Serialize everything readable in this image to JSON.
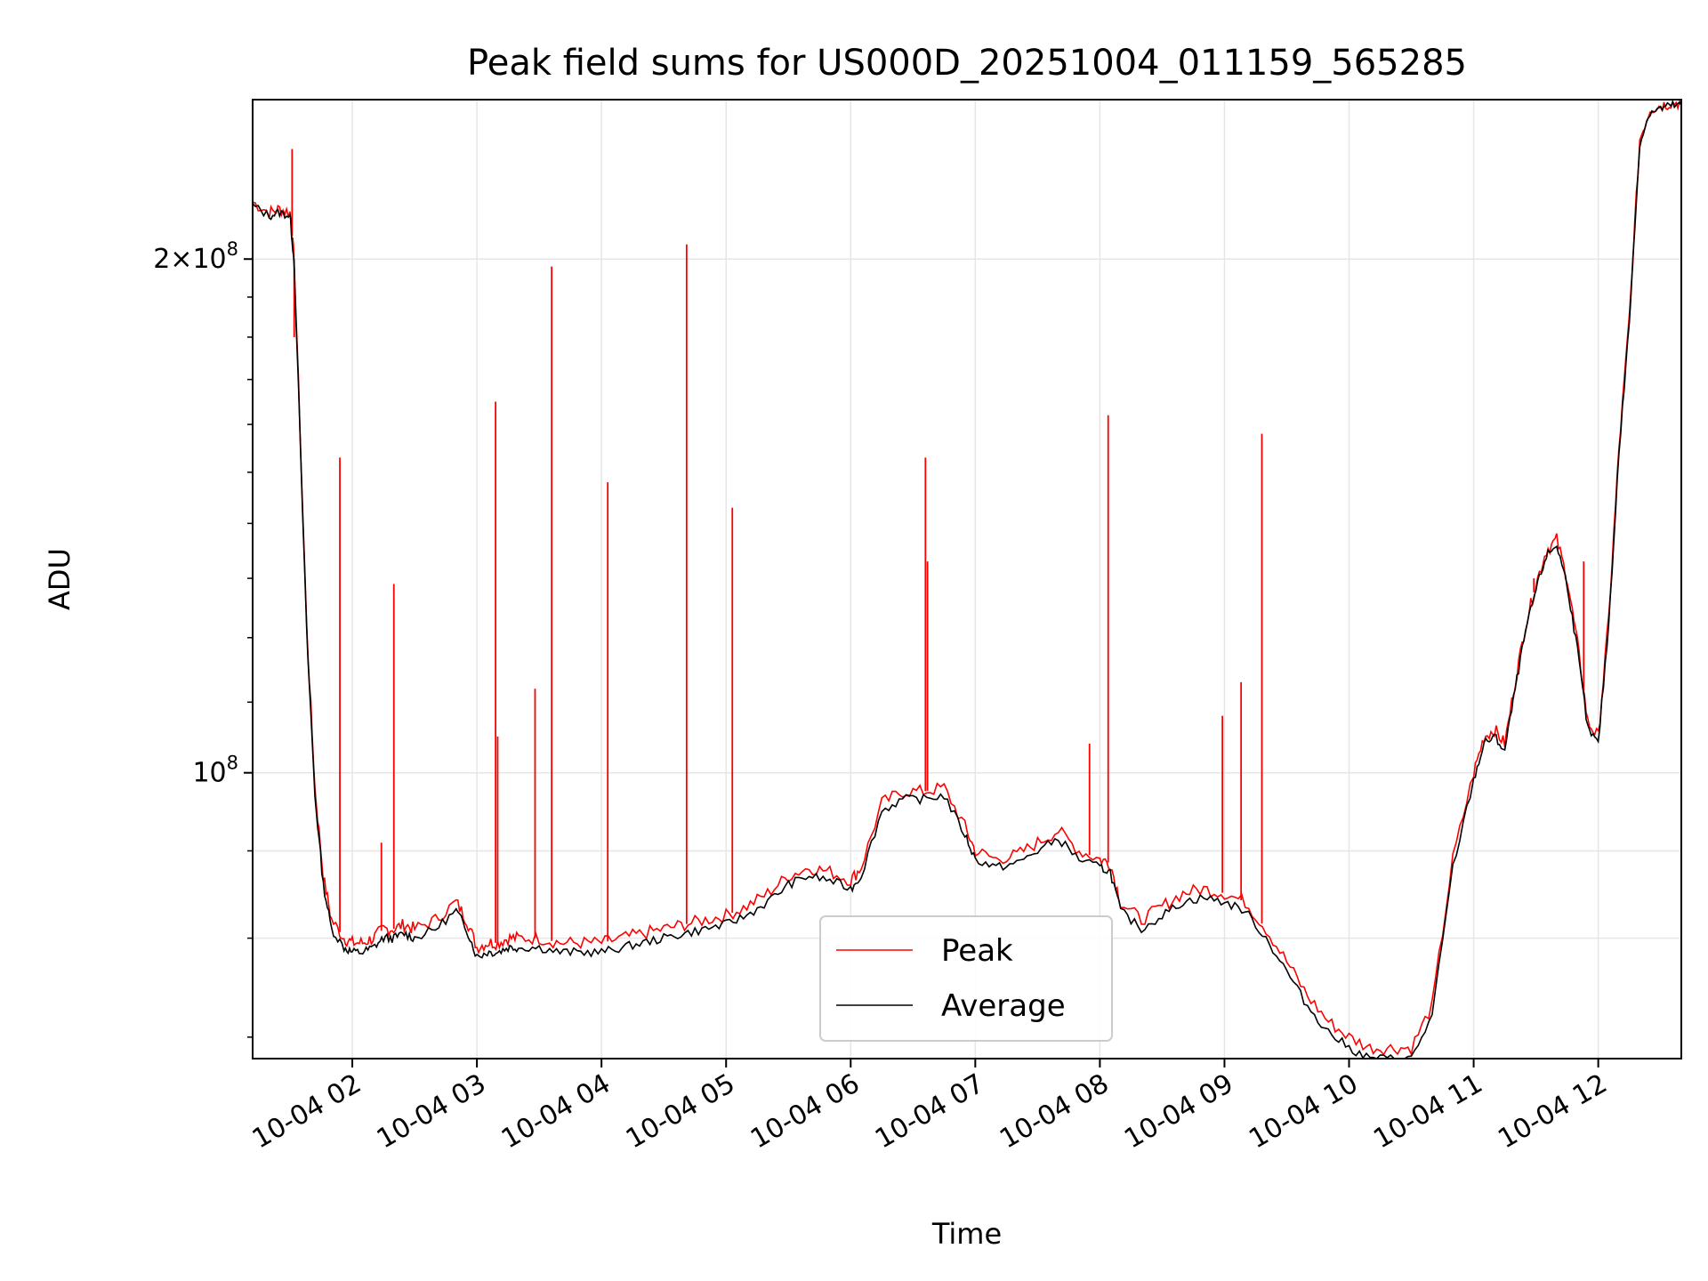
{
  "chart_data": {
    "type": "line",
    "title": "Peak field sums for US000D_20251004_011159_565285",
    "xlabel": "Time",
    "ylabel": "ADU",
    "yscale": "log",
    "xlim": [
      "2025-10-04 01:12",
      "2025-10-04 12:40"
    ],
    "ylim": [
      68000000,
      248000000
    ],
    "grid": true,
    "legend": "lower-center",
    "x_ticks": [
      "10-04 02",
      "10-04 03",
      "10-04 04",
      "10-04 05",
      "10-04 06",
      "10-04 07",
      "10-04 08",
      "10-04 09",
      "10-04 10",
      "10-04 11",
      "10-04 12"
    ],
    "y_ticks": [
      {
        "value": 200000000,
        "mantissa": "2",
        "exponent": "8"
      },
      {
        "value": 100000000,
        "mantissa": "",
        "exponent": "8"
      }
    ],
    "x": [
      "01:12",
      "01:20",
      "01:25",
      "01:30",
      "01:32",
      "01:38",
      "01:42",
      "01:46",
      "01:50",
      "01:56",
      "02:00",
      "02:05",
      "02:10",
      "02:15",
      "02:20",
      "02:25",
      "02:30",
      "02:40",
      "02:50",
      "02:55",
      "03:00",
      "03:05",
      "03:10",
      "03:15",
      "03:20",
      "03:30",
      "03:40",
      "03:50",
      "04:00",
      "04:10",
      "04:20",
      "04:30",
      "04:40",
      "04:50",
      "05:00",
      "05:10",
      "05:20",
      "05:30",
      "05:40",
      "05:50",
      "06:00",
      "06:05",
      "06:15",
      "06:25",
      "06:35",
      "06:45",
      "06:55",
      "07:00",
      "07:10",
      "07:20",
      "07:30",
      "07:40",
      "07:50",
      "08:00",
      "08:05",
      "08:10",
      "08:20",
      "08:30",
      "08:40",
      "08:50",
      "09:00",
      "09:10",
      "09:20",
      "09:30",
      "09:40",
      "09:50",
      "10:00",
      "10:10",
      "10:20",
      "10:30",
      "10:40",
      "10:50",
      "11:00",
      "11:05",
      "11:10",
      "11:15",
      "11:20",
      "11:25",
      "11:30",
      "11:35",
      "11:40",
      "11:45",
      "11:50",
      "11:55",
      "12:00",
      "12:05",
      "12:10",
      "12:15",
      "12:20",
      "12:25",
      "12:30",
      "12:35",
      "12:40"
    ],
    "series": [
      {
        "name": "Peak",
        "color": "#ff0000",
        "values": [
          216000000,
          213000000,
          214000000,
          213000000,
          200000000,
          122000000,
          98000000,
          87000000,
          82000000,
          80000000,
          79500000,
          79500000,
          80000000,
          81000000,
          81000000,
          81500000,
          81000000,
          82000000,
          84000000,
          82000000,
          79000000,
          79500000,
          79500000,
          80000000,
          80000000,
          80000000,
          79500000,
          79500000,
          79500000,
          80000000,
          80500000,
          81000000,
          81500000,
          82000000,
          82500000,
          83500000,
          85000000,
          87000000,
          88000000,
          87500000,
          86500000,
          88000000,
          96000000,
          97500000,
          97500000,
          98000000,
          93000000,
          90000000,
          89000000,
          89500000,
          91000000,
          92500000,
          90000000,
          89000000,
          88500000,
          84000000,
          82000000,
          83500000,
          85000000,
          85500000,
          85000000,
          84000000,
          81000000,
          77500000,
          74000000,
          71500000,
          70000000,
          69000000,
          69000000,
          69000000,
          73000000,
          89000000,
          100000000,
          105000000,
          106000000,
          104000000,
          113000000,
          122000000,
          129000000,
          135000000,
          137000000,
          130000000,
          119000000,
          107000000,
          105000000,
          123000000,
          155000000,
          185000000,
          235000000,
          245000000,
          246000000,
          247000000,
          247000000
        ]
      },
      {
        "name": "Average",
        "color": "#000000",
        "values": [
          215000000,
          212000000,
          213000000,
          212000000,
          199000000,
          121000000,
          97000000,
          86000000,
          81000000,
          79000000,
          78500000,
          78500000,
          79000000,
          80000000,
          80000000,
          80500000,
          80000000,
          81000000,
          83000000,
          81000000,
          78000000,
          78500000,
          78500000,
          79000000,
          79000000,
          79000000,
          78500000,
          78500000,
          78500000,
          79000000,
          79500000,
          80000000,
          80500000,
          81000000,
          81500000,
          82500000,
          84000000,
          86000000,
          87000000,
          86500000,
          85500000,
          87000000,
          95000000,
          96500000,
          96500000,
          97000000,
          92000000,
          89000000,
          88000000,
          88500000,
          90000000,
          91500000,
          89000000,
          88000000,
          87500000,
          83000000,
          81000000,
          82500000,
          84000000,
          84500000,
          84000000,
          83000000,
          80000000,
          76500000,
          73000000,
          70500000,
          69000000,
          68000000,
          68000000,
          68000000,
          72000000,
          88000000,
          99000000,
          104000000,
          105000000,
          103000000,
          112000000,
          121000000,
          128000000,
          134000000,
          136000000,
          129000000,
          118000000,
          106000000,
          104000000,
          122000000,
          154000000,
          184000000,
          234000000,
          244000000,
          245000000,
          246000000,
          246000000
        ]
      }
    ],
    "peak_spikes": [
      {
        "time": "01:31",
        "value": 232000000
      },
      {
        "time": "01:32",
        "value": 180000000
      },
      {
        "time": "01:54",
        "value": 153000000
      },
      {
        "time": "02:14",
        "value": 91000000
      },
      {
        "time": "02:20",
        "value": 129000000
      },
      {
        "time": "03:09",
        "value": 165000000
      },
      {
        "time": "03:10",
        "value": 105000000
      },
      {
        "time": "03:28",
        "value": 112000000
      },
      {
        "time": "03:36",
        "value": 198000000
      },
      {
        "time": "04:03",
        "value": 148000000
      },
      {
        "time": "04:41",
        "value": 204000000
      },
      {
        "time": "05:03",
        "value": 143000000
      },
      {
        "time": "06:36",
        "value": 153000000
      },
      {
        "time": "06:37",
        "value": 133000000
      },
      {
        "time": "07:55",
        "value": 104000000
      },
      {
        "time": "08:04",
        "value": 162000000
      },
      {
        "time": "08:59",
        "value": 108000000
      },
      {
        "time": "09:08",
        "value": 113000000
      },
      {
        "time": "09:18",
        "value": 158000000
      },
      {
        "time": "11:29",
        "value": 130000000
      },
      {
        "time": "11:53",
        "value": 133000000
      }
    ]
  }
}
